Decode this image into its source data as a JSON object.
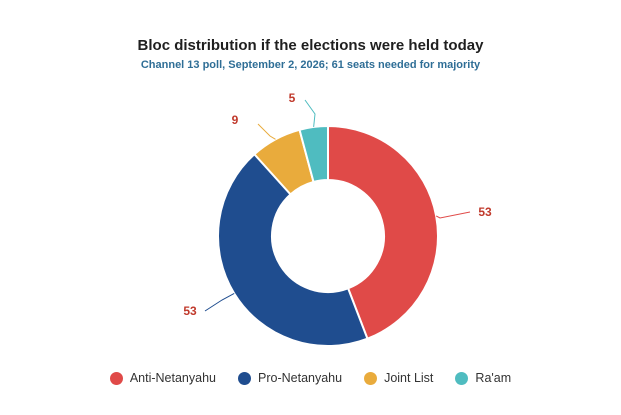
{
  "chart_data": {
    "type": "pie",
    "variant": "donut",
    "title": "Bloc distribution if the elections were held today",
    "subtitle": "Channel 13 poll, September 2, 2026; 61 seats needed for majority",
    "categories": [
      "Anti-Netanyahu",
      "Pro-Netanyahu",
      "Joint List",
      "Ra'am"
    ],
    "values": [
      53,
      53,
      9,
      5
    ],
    "colors": [
      "#e04a48",
      "#1f4d8f",
      "#e9ab3c",
      "#4fbcc0"
    ],
    "legend": "bottom",
    "data_labels": [
      "53",
      "53",
      "9",
      "5"
    ]
  }
}
